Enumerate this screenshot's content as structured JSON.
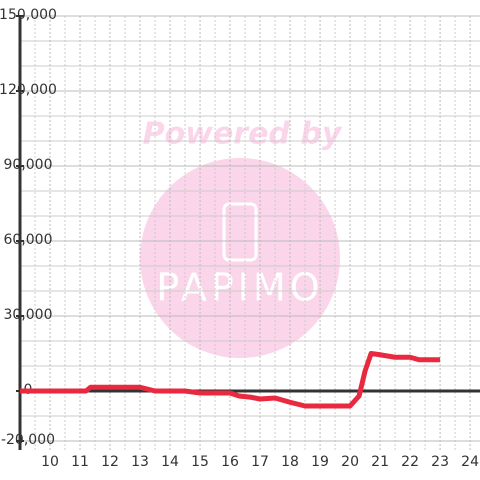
{
  "chart_data": {
    "type": "line",
    "x": [
      9,
      11.2,
      11.35,
      13,
      13.5,
      14.5,
      15,
      16,
      16.3,
      16.7,
      17,
      17.5,
      18,
      18.5,
      19,
      20,
      20.3,
      20.5,
      20.7,
      21,
      21.5,
      22,
      22.3,
      23
    ],
    "series": [
      {
        "color": "#e8293f",
        "values": [
          0,
          0,
          1500,
          1500,
          0,
          0,
          -800,
          -800,
          -2000,
          -2500,
          -3200,
          -2800,
          -4500,
          -6000,
          -6000,
          -6000,
          -2000,
          8000,
          15000,
          14500,
          13500,
          13500,
          12500,
          12500
        ]
      }
    ],
    "xlim": [
      9,
      24.33
    ],
    "xticks": [
      10,
      11,
      12,
      13,
      14,
      15,
      16,
      17,
      18,
      19,
      20,
      21,
      22,
      23,
      24
    ],
    "minor_xticks": [
      9.5,
      10.5,
      11.5,
      12.5,
      13.5,
      14.5,
      15.5,
      16.5,
      17.5,
      18.5,
      19.5,
      20.5,
      21.5,
      22.5,
      23.5
    ],
    "ylim": [
      -20000,
      150000
    ],
    "yticks": [
      {
        "value": -20000,
        "label": "-20,000"
      },
      0,
      {
        "value": 30000,
        "label": "30,000"
      },
      {
        "value": 60000,
        "label": "60,000"
      },
      {
        "value": 90000,
        "label": "90,000"
      },
      {
        "value": 120000,
        "label": "120,000"
      },
      {
        "value": 150000,
        "label": "150,000"
      }
    ],
    "minor_yticks": [
      -10000,
      10000,
      20000,
      40000,
      50000,
      70000,
      80000,
      100000,
      110000,
      130000,
      140000
    ],
    "grid": true,
    "watermark": {
      "line1": "Powered by",
      "line2": "PAPIMO"
    }
  }
}
